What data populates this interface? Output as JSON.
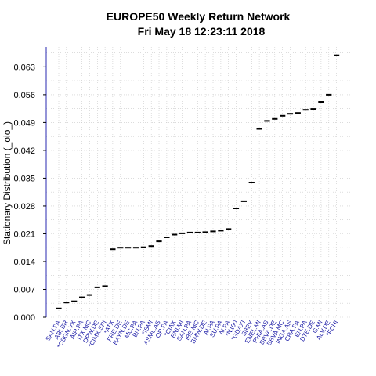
{
  "chart_data": {
    "type": "scatter",
    "title_line1": "EUROPE50  Weekly Return Network",
    "title_line2": "Fri May 18 12:23:11 2018",
    "xlabel": "",
    "ylabel": "Stationary Distribution (_oio_)",
    "ylim": [
      0,
      0.068
    ],
    "yticks": [
      "0.000",
      "0.007",
      "0.014",
      "0.021",
      "0.028",
      "0.035",
      "0.042",
      "0.049",
      "0.056",
      "0.063"
    ],
    "grid": true,
    "categories": [
      "SAN.PA",
      "ABI.BR",
      "*CSGN.VX",
      "AIR.PA",
      "ITX.MC",
      "DPW.DE",
      "*CIMX.SPI",
      "*ATX",
      "FRE.DE",
      "BAYN.DE",
      "MC.PA",
      "BN.PA",
      "*ISMI",
      "ASML.AS",
      "OR.PA",
      "*CIAX",
      "ENI.MI",
      "SAN.PA",
      "IBE.MC",
      "BMW.DE",
      "AI.PA",
      "SU.PA",
      "AI.PA",
      "*N100",
      "*GDAXI",
      "SBEY",
      "ENEL.MI",
      "PHIA.AS",
      "BBVA.DE",
      "BBVA.MC",
      "INGA.AS",
      "CRA.PA",
      "EN.PA",
      "DTE.DE",
      "G.MI",
      "ALV.DE",
      "*FCHI"
    ],
    "values": [
      0.0022,
      0.0037,
      0.004,
      0.005,
      0.0056,
      0.0075,
      0.0078,
      0.0171,
      0.0175,
      0.0175,
      0.0175,
      0.0176,
      0.0179,
      0.0191,
      0.0201,
      0.0208,
      0.0211,
      0.0213,
      0.0213,
      0.0214,
      0.0216,
      0.0218,
      0.0222,
      0.0274,
      0.0292,
      0.0339,
      0.0474,
      0.0494,
      0.0499,
      0.0507,
      0.0512,
      0.0514,
      0.0522,
      0.0524,
      0.0542,
      0.056,
      0.0659
    ],
    "colors": {
      "axis": "#2a2ab0",
      "grid": "#c8c8c8",
      "points": "#000000",
      "xtick": "#1a1aa6"
    }
  }
}
